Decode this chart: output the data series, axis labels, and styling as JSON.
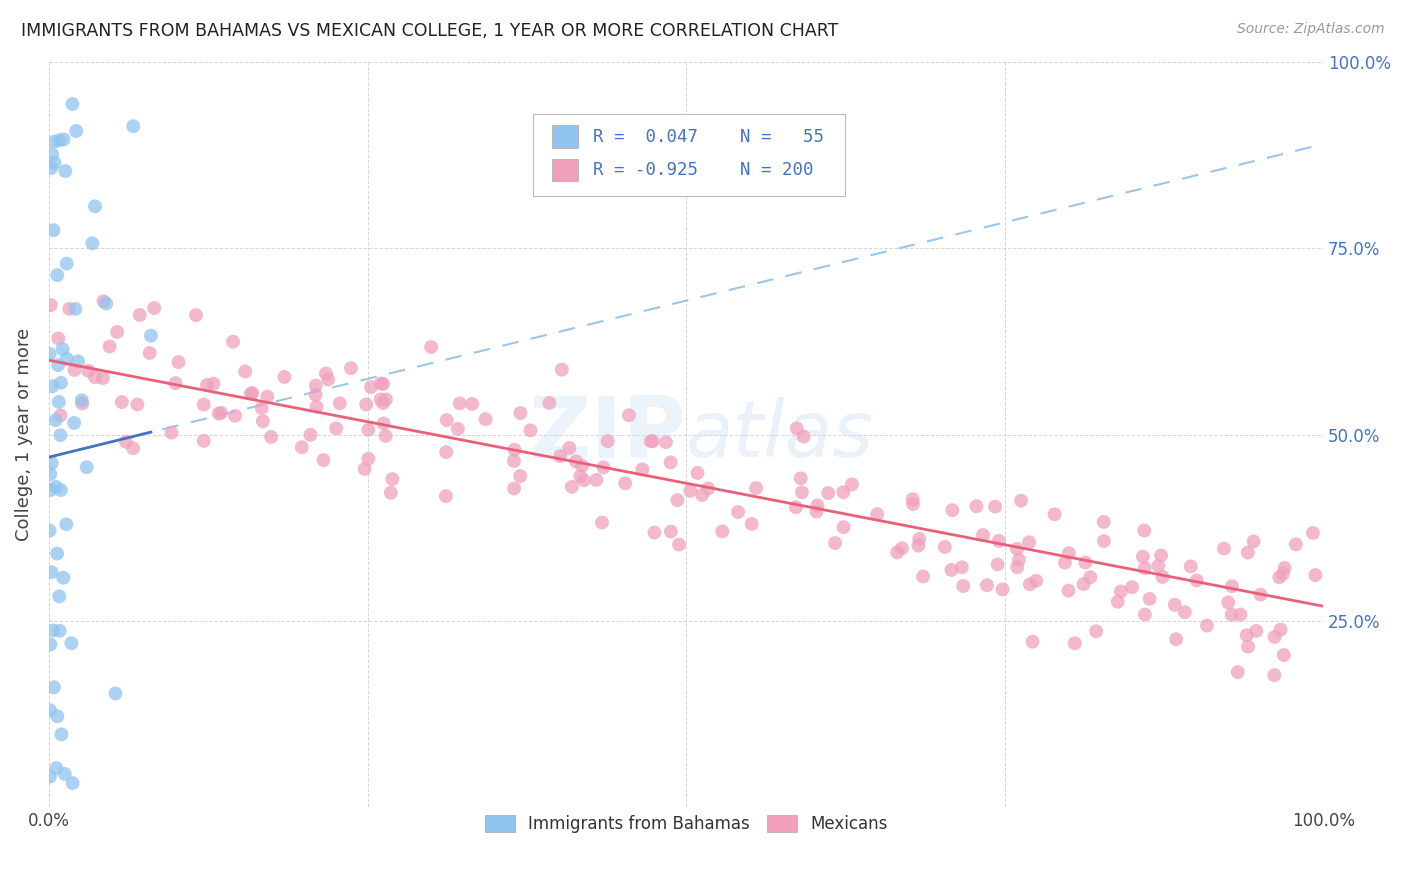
{
  "title": "IMMIGRANTS FROM BAHAMAS VS MEXICAN COLLEGE, 1 YEAR OR MORE CORRELATION CHART",
  "source": "Source: ZipAtlas.com",
  "ylabel": "College, 1 year or more",
  "xlim": [
    0.0,
    1.0
  ],
  "ylim": [
    0.0,
    1.0
  ],
  "blue_dot_color": "#91C3F0",
  "pink_dot_color": "#F0A0BC",
  "blue_line_color": "#4472C4",
  "blue_dash_color": "#90C0E8",
  "pink_line_color": "#E8607A",
  "legend_text_color": "#4472C4",
  "watermark_color": "#C8D8F0",
  "bahamas_n": 55,
  "mexicans_n": 200,
  "bahamas_R": 0.047,
  "mexicans_R": -0.925,
  "mex_intercept": 0.6,
  "mex_slope": -0.33,
  "bah_intercept": 0.47,
  "bah_slope": 0.42
}
